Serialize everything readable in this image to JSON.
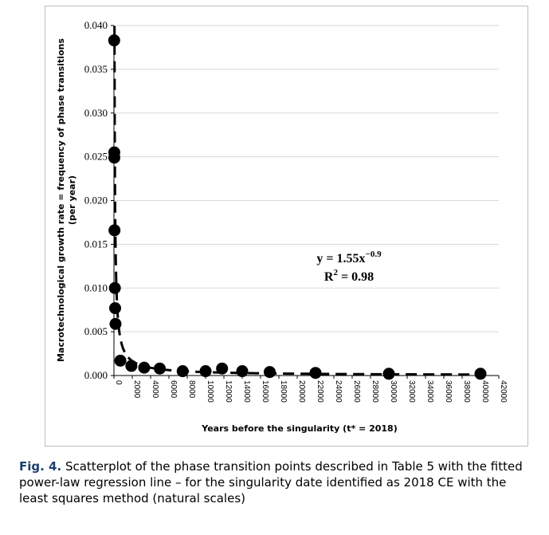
{
  "chart_data": {
    "type": "scatter",
    "xlabel": "Years before the singularity  (t* = 2018)",
    "ylabel": "Macrotechnological  growth rate = frequency of phase transitions (per year)",
    "xlim": [
      0,
      42000
    ],
    "ylim": [
      0,
      0.04
    ],
    "x_ticks": [
      "0",
      "2000",
      "4000",
      "6000",
      "8000",
      "10000",
      "12000",
      "14000",
      "16000",
      "18000",
      "20000",
      "22000",
      "24000",
      "26000",
      "28000",
      "30000",
      "32000",
      "34000",
      "36000",
      "38000",
      "40000",
      "42000"
    ],
    "y_ticks": [
      "0.000",
      "0.005",
      "0.010",
      "0.015",
      "0.020",
      "0.025",
      "0.030",
      "0.035",
      "0.040"
    ],
    "points": [
      {
        "x": 26,
        "y": 0.0383
      },
      {
        "x": 39,
        "y": 0.0255
      },
      {
        "x": 40,
        "y": 0.0249
      },
      {
        "x": 60,
        "y": 0.0166
      },
      {
        "x": 100,
        "y": 0.01
      },
      {
        "x": 130,
        "y": 0.0077
      },
      {
        "x": 170,
        "y": 0.0059
      },
      {
        "x": 700,
        "y": 0.0017
      },
      {
        "x": 1900,
        "y": 0.0011
      },
      {
        "x": 3300,
        "y": 0.0009
      },
      {
        "x": 5000,
        "y": 0.0008
      },
      {
        "x": 7500,
        "y": 0.0005
      },
      {
        "x": 10000,
        "y": 0.0005
      },
      {
        "x": 11800,
        "y": 0.0008
      },
      {
        "x": 14000,
        "y": 0.0005
      },
      {
        "x": 17000,
        "y": 0.0004
      },
      {
        "x": 22000,
        "y": 0.0003
      },
      {
        "x": 30000,
        "y": 0.0002
      },
      {
        "x": 40000,
        "y": 0.0002
      }
    ],
    "trendline": {
      "equation": "y = 1.55x",
      "exponent": "−0.9",
      "r2_label": "R",
      "r2_sup": "2",
      "r2_value": " = 0.98",
      "a": 1.55,
      "b": -0.9
    }
  },
  "caption": {
    "label": "Fig. 4.",
    "text": "Scatterplot of the phase transition points described in Table 5 with the fitted power-law regression line – for the singularity date identified as 2018 CE with the least squares method (natural scales)"
  }
}
